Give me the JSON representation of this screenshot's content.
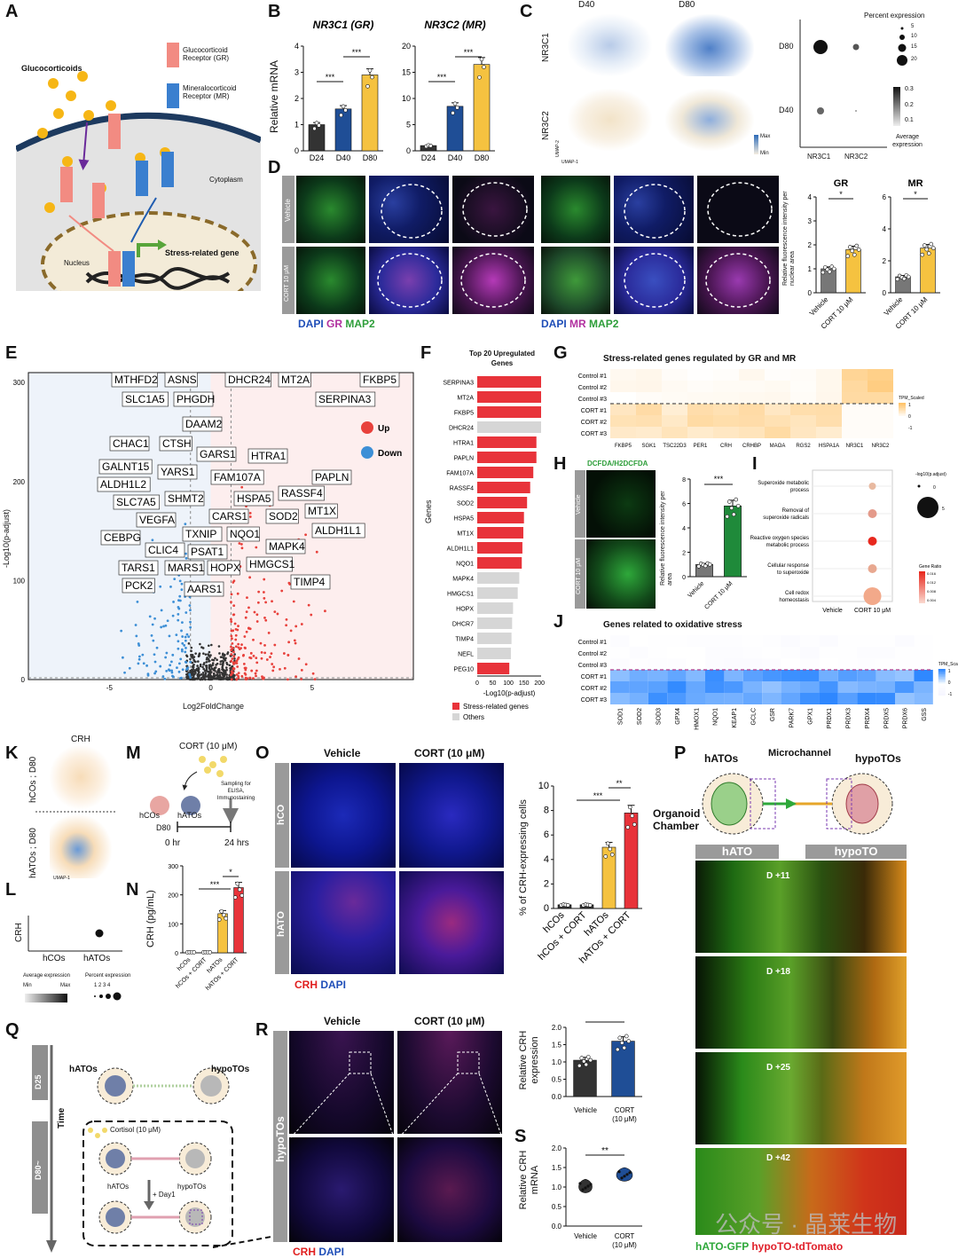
{
  "panel_letters": [
    "A",
    "B",
    "C",
    "D",
    "E",
    "F",
    "G",
    "H",
    "I",
    "J",
    "K",
    "L",
    "M",
    "N",
    "O",
    "P",
    "Q",
    "R",
    "S"
  ],
  "panelA": {
    "glucocorticoids": "Glucocorticoids",
    "gr_legend": "Glucocorticoid Receptor (GR)",
    "mr_legend": "Mineralocorticoid Receptor (MR)",
    "cytoplasm": "Cytoplasm",
    "nucleus": "Nucleus",
    "stress_gene": "Stress-related gene",
    "gr": "GR",
    "mr": "MR"
  },
  "panelB": {
    "ylabel": "Relative mRNA",
    "charts": [
      {
        "title": "NR3C1 (GR)",
        "categories": [
          "D24",
          "D40",
          "D80"
        ],
        "values": [
          1.0,
          1.6,
          2.9
        ],
        "ylim": [
          0,
          4
        ],
        "yticks": [
          0,
          1,
          2,
          3,
          4
        ],
        "colors": [
          "#333333",
          "#1f4e96",
          "#f5c240"
        ],
        "sig": [
          "***",
          "***"
        ]
      },
      {
        "title": "NR3C2 (MR)",
        "categories": [
          "D24",
          "D40",
          "D80"
        ],
        "values": [
          1.0,
          8.5,
          16.5
        ],
        "ylim": [
          0,
          20
        ],
        "yticks": [
          0,
          5,
          10,
          15,
          20
        ],
        "colors": [
          "#333333",
          "#1f4e96",
          "#f5c240"
        ],
        "sig": [
          "***",
          "***"
        ]
      }
    ]
  },
  "panelC": {
    "cols": [
      "D40",
      "D80"
    ],
    "rows": [
      "NR3C1",
      "NR3C2"
    ],
    "max": "Max",
    "min": "Min",
    "umap1": "UMAP-1",
    "umap2": "UMAP-2",
    "dot_rows": [
      "D80",
      "D40"
    ],
    "dot_cols": [
      "NR3C1",
      "NR3C2"
    ],
    "pct_title": "Percent expression",
    "pct_values": [
      "5",
      "10",
      "15",
      "20"
    ],
    "avg_title": "Average expression",
    "avg_values": [
      "0.3",
      "0.2",
      "0.1"
    ]
  },
  "panelD": {
    "rows": [
      "Vehicle",
      "CORT 10 μM"
    ],
    "legend_left": [
      "DAPI",
      "GR",
      "MAP2"
    ],
    "legend_right": [
      "DAPI",
      "MR",
      "MAP2"
    ],
    "legend_colors": [
      "#1f4eb8",
      "#b1309f",
      "#2e9e3a"
    ],
    "ylabel": "Relative fluorescence intensity per nuclear area",
    "charts": [
      {
        "title": "GR",
        "categories": [
          "Vehicle",
          "CORT 10 μM"
        ],
        "values": [
          1.0,
          1.8
        ],
        "ylim": [
          0,
          4
        ],
        "yticks": [
          0,
          1,
          2,
          3,
          4
        ],
        "sig": "*"
      },
      {
        "title": "MR",
        "categories": [
          "Vehicle",
          "CORT 10 μM"
        ],
        "values": [
          1.0,
          2.8
        ],
        "ylim": [
          0,
          6
        ],
        "yticks": [
          0,
          2,
          4,
          6
        ],
        "sig": "*"
      }
    ]
  },
  "panelE": {
    "xlabel": "Log2FoldChange",
    "ylabel": "-Log10(p-adjust)",
    "xticks": [
      "-5",
      "0",
      "5"
    ],
    "yticks": [
      "0",
      "100",
      "200",
      "300"
    ],
    "legend": [
      {
        "label": "Up",
        "color": "#e8413c"
      },
      {
        "label": "Down",
        "color": "#3d8fd6"
      }
    ],
    "labels": [
      "MTHFD2",
      "ASNS",
      "DHCR24",
      "MT2A",
      "FKBP5",
      "SLC1A5",
      "PHGDH",
      "SERPINA3",
      "DAAM2",
      "CHAC1",
      "CTSH",
      "GARS1",
      "HTRA1",
      "GALNT15",
      "YARS1",
      "PAPLN",
      "ALDH1L2",
      "FAM107A",
      "SLC7A5",
      "SHMT2",
      "HSPA5",
      "RASSF4",
      "VEGFA",
      "CARS1",
      "SOD2",
      "MT1X",
      "CEBPG",
      "TXNIP",
      "NQO1",
      "ALDH1L1",
      "CLIC4",
      "PSAT1",
      "MAPK4",
      "TARS1",
      "MARS1",
      "HOPX",
      "HMGCS1",
      "PCK2",
      "AARS1",
      "TIMP4"
    ]
  },
  "panelF": {
    "title": "Top 20 Upregulated Genes",
    "ylabel": "Genes",
    "xlabel": "-Log10(p-adjust)",
    "xticks": [
      0,
      50,
      100,
      150,
      200
    ],
    "genes": [
      "SERPINA3",
      "MT2A",
      "FKBP5",
      "DHCR24",
      "HTRA1",
      "PAPLN",
      "FAM107A",
      "RASSF4",
      "SOD2",
      "HSPA5",
      "MT1X",
      "ALDH1L1",
      "NQO1",
      "MAPK4",
      "HMGCS1",
      "HOPX",
      "DHCR7",
      "TIMP4",
      "NEFL",
      "PEG10"
    ],
    "values": [
      205,
      205,
      205,
      205,
      190,
      190,
      180,
      170,
      160,
      150,
      148,
      145,
      143,
      135,
      130,
      115,
      112,
      110,
      108,
      103
    ],
    "stress": [
      true,
      true,
      true,
      false,
      true,
      true,
      true,
      true,
      true,
      true,
      true,
      true,
      true,
      false,
      false,
      false,
      false,
      false,
      false,
      true
    ],
    "legend": [
      "Stress-related genes",
      "Others"
    ],
    "colors": [
      "#e8333a",
      "#d6d6d6"
    ]
  },
  "panelG": {
    "title": "Stress-related genes regulated by GR and MR",
    "rows": [
      "Control #1",
      "Control #2",
      "Control #3",
      "CORT #1",
      "CORT #2",
      "CORT #3"
    ],
    "cols": [
      "FKBP5",
      "SGK1",
      "TSC22D3",
      "PER1",
      "CRH",
      "CRHBP",
      "MAOA",
      "RGS2",
      "HSPA1A",
      "NR3C1",
      "NR3C2"
    ],
    "scale_title": "TPM_Scaled",
    "scale_ticks": [
      "1",
      "0",
      "-1"
    ]
  },
  "panelH": {
    "stain": "DCFDA/H2DCFDA",
    "rows": [
      "Vehicle",
      "CORT 10 μM"
    ],
    "ylabel": "Relative fluorescence intensity per area",
    "categories": [
      "Vehicle",
      "CORT 10 μM"
    ],
    "values": [
      1.0,
      5.8
    ],
    "ylim": [
      0,
      8
    ],
    "yticks": [
      0,
      2,
      4,
      6,
      8
    ],
    "sig": "***"
  },
  "panelI": {
    "terms": [
      "Superoxide metabolic process",
      "Removal of superoxide radicals",
      "Reactive oxygen species metabolic process",
      "Cellular response to superoxide",
      "Cell redox homeostasis"
    ],
    "xcats": [
      "Vehicle",
      "CORT 10 μM"
    ],
    "size_title": "-log10(p.adjust)",
    "size_values": [
      "0",
      "5"
    ],
    "color_title": "Gene Ratio",
    "color_values": [
      "0.016",
      "0.012",
      "0.008",
      "0.004"
    ]
  },
  "panelJ": {
    "title": "Genes related to oxidative stress",
    "rows": [
      "Control #1",
      "Control #2",
      "Control #3",
      "CORT #1",
      "CORT #2",
      "CORT #3"
    ],
    "cols": [
      "SOD1",
      "SOD2",
      "SOD3",
      "GPX4",
      "HMOX1",
      "NQO1",
      "KEAP1",
      "GCLC",
      "GSR",
      "PARK7",
      "GPX1",
      "PRDX1",
      "PRDX3",
      "PRDX4",
      "PRDX5",
      "PRDX6",
      "GSS"
    ],
    "scale_title": "TPM_Scaled",
    "scale_ticks": [
      "1",
      "0",
      "-1"
    ]
  },
  "panelK": {
    "title": "CRH",
    "rows": [
      "hCOs ; D80",
      "hATOs ; D80"
    ],
    "umap1": "UMAP-1",
    "umap2": "UMAP-2"
  },
  "panelL": {
    "gene": "CRH",
    "cols": [
      "hCOs",
      "hATOs"
    ],
    "avg_title": "Average expression",
    "min": "Min",
    "max": "Max",
    "pct_title": "Percent expression",
    "pct_values": "1 2 3 4"
  },
  "panelM": {
    "treatment": "CORT (10 μM)",
    "hcos": "hCOs",
    "hatos": "hATOs",
    "day": "D80",
    "t0": "0 hr",
    "t1": "24 hrs",
    "sampling": "Sampling for ELISA, Immunostaining"
  },
  "panelN": {
    "ylabel": "CRH (pg/mL)",
    "categories": [
      "hCOs",
      "hCOs + CORT",
      "hATOs",
      "hATOs + CORT"
    ],
    "values": [
      2,
      2,
      135,
      225
    ],
    "ylim": [
      0,
      300
    ],
    "yticks": [
      0,
      100,
      200,
      300
    ],
    "colors": [
      "#333333",
      "#333333",
      "#f5c240",
      "#e8333a"
    ],
    "sig": [
      "***",
      "*"
    ]
  },
  "panelO": {
    "cols": [
      "Vehicle",
      "CORT (10 μM)"
    ],
    "rows": [
      "hCO",
      "hATO"
    ],
    "legend": [
      "CRH",
      "DAPI"
    ],
    "ylabel": "% of CRH-expressing cells",
    "categories": [
      "hCOs",
      "hCOs + CORT",
      "hATOs",
      "hATOs + CORT"
    ],
    "values": [
      0.3,
      0.3,
      5.0,
      7.8
    ],
    "ylim": [
      0,
      10
    ],
    "yticks": [
      0,
      2,
      4,
      6,
      8,
      10
    ],
    "colors": [
      "#333333",
      "#333333",
      "#f5c240",
      "#e8333a"
    ],
    "sig": [
      "***",
      "**"
    ]
  },
  "panelP": {
    "left": "hATOs",
    "right": "hypoTOs",
    "channel": "Microchannel",
    "chamber": "Organoid Chamber",
    "col_heads": [
      "hATO",
      "hypoTO"
    ],
    "days": [
      "D +11",
      "D +18",
      "D +25",
      "D +42"
    ],
    "legend": [
      "hATO-GFP",
      "hypoTO-tdTomato"
    ]
  },
  "panelQ": {
    "hatos": "hATOs",
    "hypotos": "hypoTOs",
    "d25": "D25",
    "d80": "D80~",
    "time": "Time",
    "cortisol": "Cortisol (10 μM)",
    "day1": "+ Day1"
  },
  "panelR": {
    "cols": [
      "Vehicle",
      "CORT (10 μM)"
    ],
    "row": "hypoTOs",
    "legend": [
      "CRH",
      "DAPI"
    ],
    "ylabel": "Relative CRH expression",
    "categories": [
      "Vehicle",
      "CORT (10 μM)"
    ],
    "values": [
      1.05,
      1.6
    ],
    "ylim": [
      0,
      2.0
    ],
    "yticks": [
      "0.0",
      "0.5",
      "1.0",
      "1.5",
      "2.0"
    ],
    "colors": [
      "#333333",
      "#1f4e96"
    ],
    "sig": "**"
  },
  "panelS": {
    "ylabel": "Relative CRH mRNA",
    "categories": [
      "Vehicle",
      "CORT (10 μM)"
    ],
    "values": [
      1.0,
      1.3
    ],
    "ylim": [
      0,
      2.0
    ],
    "yticks": [
      "0.0",
      "0.5",
      "1.0",
      "1.5",
      "2.0"
    ],
    "colors": [
      "#333333",
      "#1f4e96"
    ],
    "sig": "**"
  },
  "watermark": "公众号 · 晶莱生物"
}
